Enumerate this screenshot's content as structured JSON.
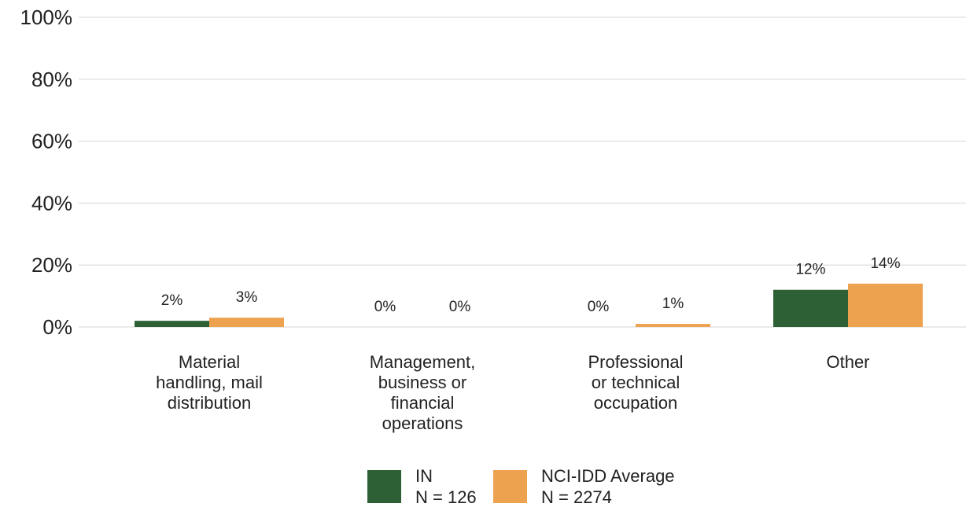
{
  "chart_data": {
    "type": "bar",
    "categories": [
      [
        "Material",
        "handling, mail",
        "distribution"
      ],
      [
        "Management,",
        "business or",
        "financial",
        "operations"
      ],
      [
        "Professional",
        "or technical",
        "occupation"
      ],
      [
        "Other"
      ]
    ],
    "series": [
      {
        "name": "IN",
        "legend_lines": [
          "IN",
          "N = 126"
        ],
        "values": [
          2,
          0,
          0,
          12
        ],
        "labels": [
          "2%",
          "0%",
          "0%",
          "12%"
        ],
        "color": "#2e6036"
      },
      {
        "name": "NCI-IDD Average",
        "legend_lines": [
          "NCI-IDD Average",
          "N = 2274"
        ],
        "values": [
          3,
          0,
          1,
          14
        ],
        "labels": [
          "3%",
          "0%",
          "1%",
          "14%"
        ],
        "color": "#eda24f"
      }
    ],
    "ylim": [
      0,
      100
    ],
    "yticks": [
      0,
      20,
      40,
      60,
      80,
      100
    ],
    "ytick_labels": [
      "0%",
      "20%",
      "40%",
      "60%",
      "80%",
      "100%"
    ],
    "grid": true,
    "legend_position": "bottom"
  }
}
